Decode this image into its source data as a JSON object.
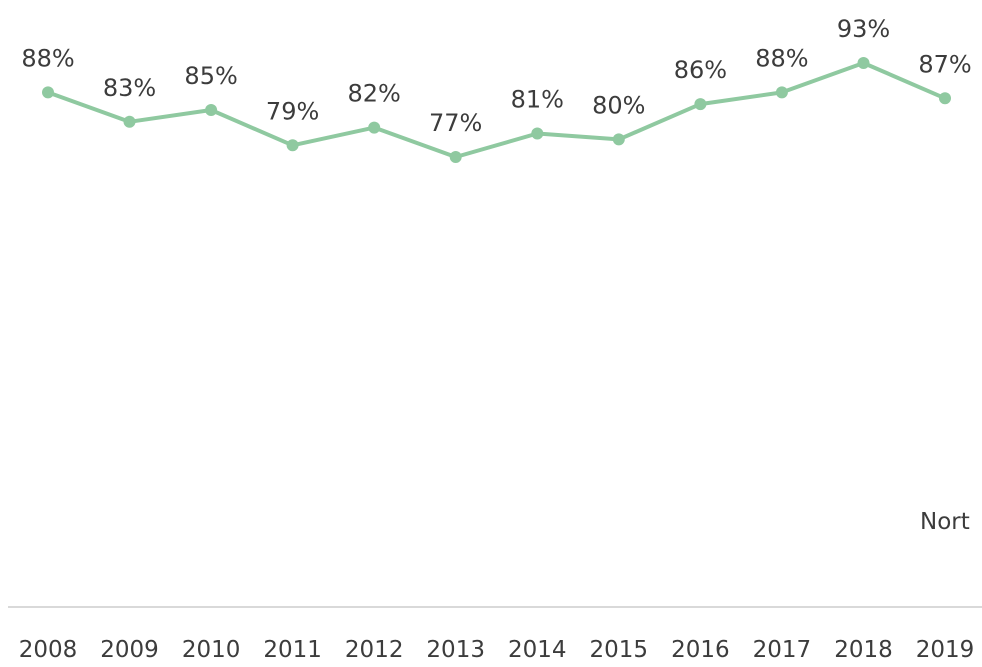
{
  "chart_data": {
    "type": "line",
    "title": "",
    "xlabel": "",
    "ylabel": "",
    "categories": [
      "2008",
      "2009",
      "2010",
      "2011",
      "2012",
      "2013",
      "2014",
      "2015",
      "2016",
      "2017",
      "2018",
      "2019"
    ],
    "series": [
      {
        "values": [
          88,
          83,
          85,
          79,
          82,
          77,
          81,
          80,
          86,
          88,
          93,
          87
        ],
        "data_labels": [
          "88%",
          "83%",
          "85%",
          "79%",
          "82%",
          "77%",
          "81%",
          "80%",
          "86%",
          "88%",
          "93%",
          "87%"
        ],
        "color": "#8fc9a0"
      }
    ],
    "annotations": [
      "Nort"
    ],
    "grid": false,
    "axis_color": "#d9d9d9"
  }
}
